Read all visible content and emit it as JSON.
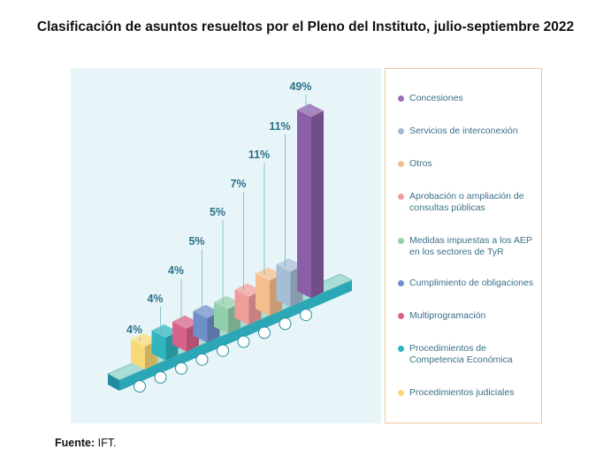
{
  "title": "Clasificación de asuntos resueltos por el Pleno del Instituto, julio-septiembre 2022",
  "source_label": "Fuente:",
  "source_value": "IFT.",
  "chart_data": {
    "type": "bar",
    "title": "Clasificación de asuntos resueltos por el Pleno del Instituto, julio-septiembre 2022",
    "categories": [
      "Procedimientos judiciales",
      "Procedimientos de Competencia Económica",
      "Multiprogramación",
      "Cumplimiento de obligaciones",
      "Medidas impuestas a los AEP en los sectores de TyR",
      "Aprobación o ampliación de consultas públicas",
      "Otros",
      "Servicios de interconexión",
      "Concesiones"
    ],
    "values": [
      4,
      4,
      4,
      5,
      5,
      7,
      11,
      11,
      49
    ],
    "value_labels": [
      "4%",
      "4%",
      "4%",
      "5%",
      "5%",
      "7%",
      "11%",
      "11%",
      "49%"
    ],
    "colors": [
      "#f8d977",
      "#2fb4c0",
      "#d9628a",
      "#6f8fcb",
      "#93cfaa",
      "#ef9d9b",
      "#f6bd8e",
      "#a6bdd6",
      "#8a5fa8"
    ],
    "legend_placement": "right",
    "grid": false
  },
  "legend": [
    {
      "label": "Concesiones",
      "color": "#9a6cb8"
    },
    {
      "label": "Servicios de interconexión",
      "color": "#9fb8d4"
    },
    {
      "label": "Otros",
      "color": "#f6bd8e"
    },
    {
      "label": "Aprobación o ampliación de consultas públicas",
      "color": "#ef9d9b"
    },
    {
      "label": "Medidas impuestas a los AEP en los sectores de TyR",
      "color": "#93cfaa"
    },
    {
      "label": "Cumplimiento de obligaciones",
      "color": "#6f8fcb"
    },
    {
      "label": "Multiprogramación",
      "color": "#d9628a"
    },
    {
      "label": "Procedimientos de Competencia Económica",
      "color": "#2fb4c0"
    },
    {
      "label": "Procedimientos judiciales",
      "color": "#f8d977"
    }
  ]
}
